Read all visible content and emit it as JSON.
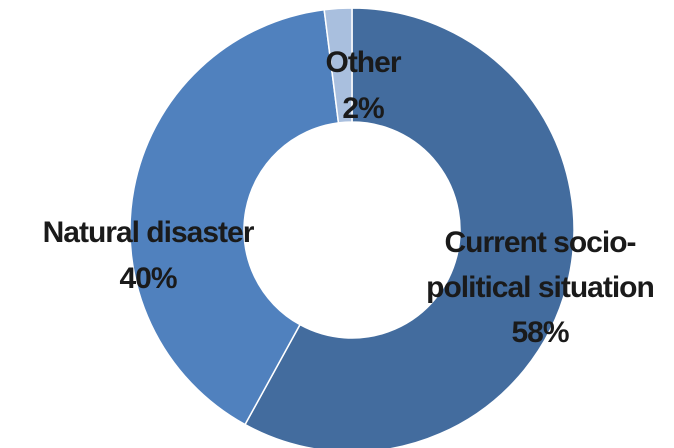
{
  "chart_data": {
    "type": "pie",
    "variant": "doughnut",
    "slices": [
      {
        "label_lines": [
          "Current socio-",
          "political situation"
        ],
        "value": 58,
        "pct_label": "58%",
        "color": "#436c9e"
      },
      {
        "label_lines": [
          "Natural disaster"
        ],
        "value": 40,
        "pct_label": "40%",
        "color": "#5081be"
      },
      {
        "label_lines": [
          "Other"
        ],
        "value": 2,
        "pct_label": "2%",
        "color": "#a9bfde"
      }
    ],
    "legend": "none"
  }
}
